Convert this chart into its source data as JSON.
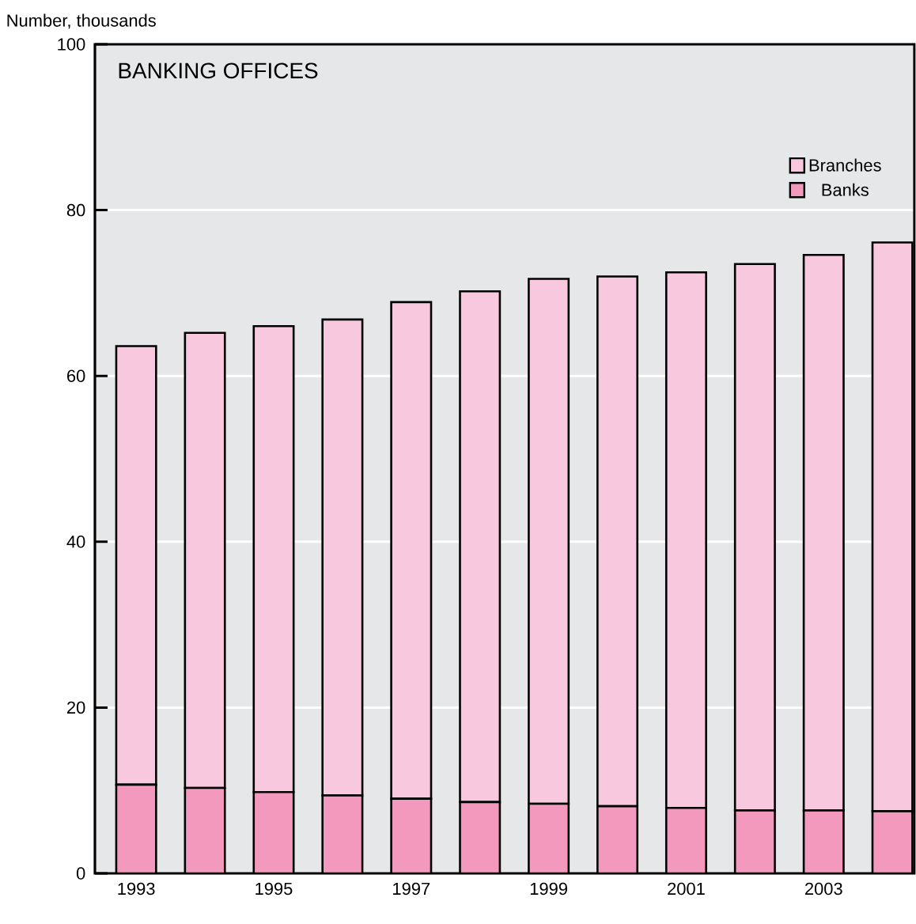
{
  "chart_data": {
    "type": "bar",
    "title": "BANKING OFFICES",
    "ylabel": "Number, thousands",
    "categories": [
      "1993",
      null,
      "1995",
      null,
      "1997",
      null,
      "1999",
      null,
      "2001",
      null,
      "2003",
      null
    ],
    "series": [
      {
        "name": "Banks",
        "color": "#f399be",
        "values": [
          10.7,
          10.3,
          9.8,
          9.4,
          9.0,
          8.6,
          8.4,
          8.1,
          7.9,
          7.6,
          7.6,
          7.5
        ]
      },
      {
        "name": "Branches",
        "color": "#f7c8de",
        "values": [
          52.9,
          54.9,
          56.2,
          57.4,
          59.9,
          61.6,
          63.3,
          63.9,
          64.6,
          65.9,
          67.0,
          68.6
        ]
      }
    ],
    "stacked": true,
    "ylim": [
      0,
      100
    ],
    "yticks": [
      0,
      20,
      40,
      60,
      80,
      100
    ],
    "grid": "y",
    "legend": "top right"
  }
}
